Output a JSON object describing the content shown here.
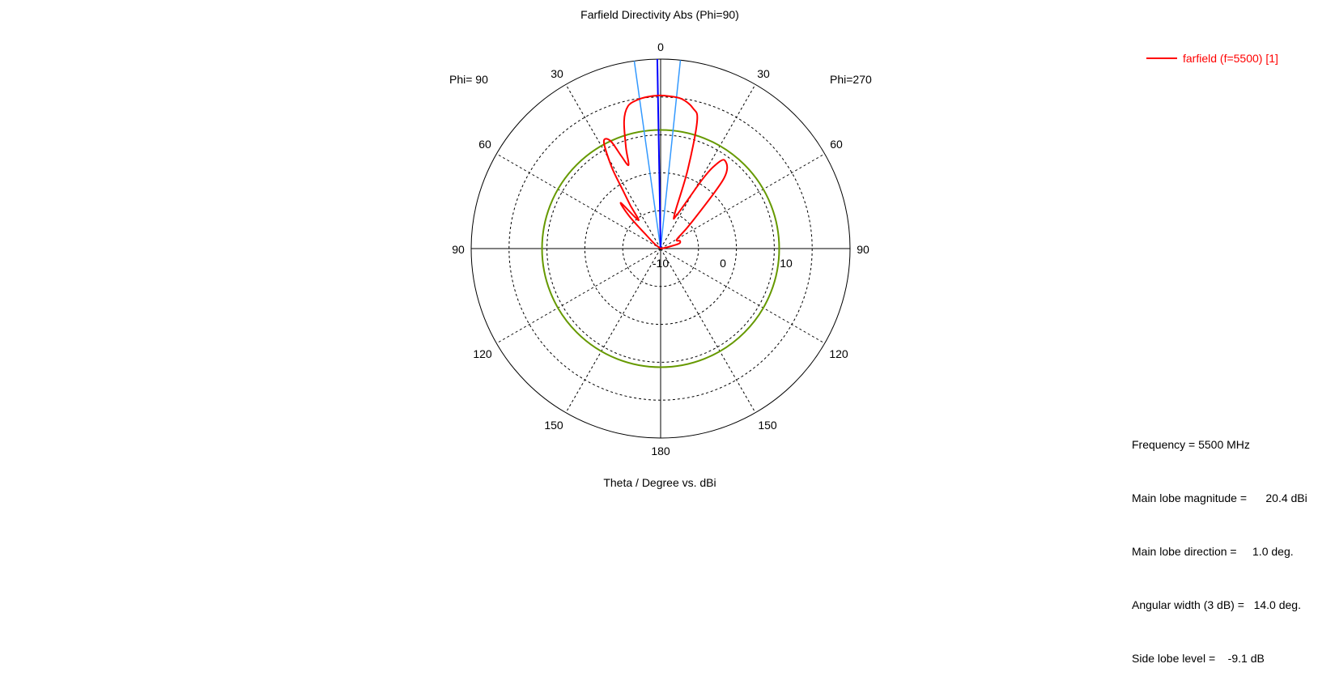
{
  "chart_data": {
    "type": "polar",
    "title": "Farfield Directivity Abs (Phi=90)",
    "xlabel": "Theta / Degree vs. dBi",
    "side_labels": {
      "left": "Phi= 90",
      "right": "Phi=270"
    },
    "angle_labels": {
      "top": "0",
      "left": [
        "30",
        "60",
        "90",
        "120",
        "150"
      ],
      "right": [
        "30",
        "60",
        "90",
        "120",
        "150"
      ],
      "bottom": "180"
    },
    "radial_axis": {
      "min": -20,
      "max": 30,
      "ticks": [
        -10,
        0,
        10
      ],
      "tick_labels": [
        "-10",
        "0",
        "10"
      ],
      "unit": "dBi"
    },
    "grid": true,
    "legend": {
      "position": "top-right",
      "entries": [
        {
          "label": "farfield (f=5500) [1]",
          "color": "#ff0000"
        }
      ]
    },
    "series": [
      {
        "name": "farfield (f=5500) [1]",
        "color": "#ff0000",
        "points_theta_dbi": [
          [
            -78,
            -18
          ],
          [
            -75,
            -15
          ],
          [
            -68,
            -14.5
          ],
          [
            -60,
            -15
          ],
          [
            -50,
            -9.5
          ],
          [
            -42,
            5
          ],
          [
            -36,
            8.8
          ],
          [
            -33,
            6
          ],
          [
            -31,
            1
          ],
          [
            -26,
            -10
          ],
          [
            -22,
            -10
          ],
          [
            -19,
            2
          ],
          [
            -16,
            15
          ],
          [
            -13,
            18
          ],
          [
            -8,
            19.9
          ],
          [
            -3,
            20.3
          ],
          [
            1,
            20.4
          ],
          [
            5,
            20.2
          ],
          [
            9,
            19.7
          ],
          [
            13,
            18.5
          ],
          [
            16,
            15
          ],
          [
            19,
            8.0
          ],
          [
            21,
            3.6
          ],
          [
            23,
            6.5
          ],
          [
            25,
            11.4
          ],
          [
            28,
            11.9
          ],
          [
            31,
            5
          ],
          [
            33,
            -2
          ],
          [
            35,
            -6
          ],
          [
            38,
            -10.5
          ],
          [
            41,
            -4
          ],
          [
            44,
            -8
          ],
          [
            47,
            -15
          ],
          [
            52,
            -18
          ]
        ]
      }
    ],
    "markers": {
      "main_lobe_direction": {
        "theta": 1.0,
        "color": "#0000ff"
      },
      "beamwidth_3db": {
        "theta": [
          -6.0,
          8.0
        ],
        "color": "#3399ff"
      },
      "side_lobe_level_circle": {
        "dbi": 11.3,
        "color": "#669900"
      }
    }
  },
  "legend": {
    "label": "farfield (f=5500) [1]",
    "color": "#ff0000"
  },
  "info": [
    "Frequency = 5500 MHz",
    "Main lobe magnitude =      20.4 dBi",
    "Main lobe direction =     1.0 deg.",
    "Angular width (3 dB) =   14.0 deg.",
    "Side lobe level =    -9.1 dB"
  ]
}
